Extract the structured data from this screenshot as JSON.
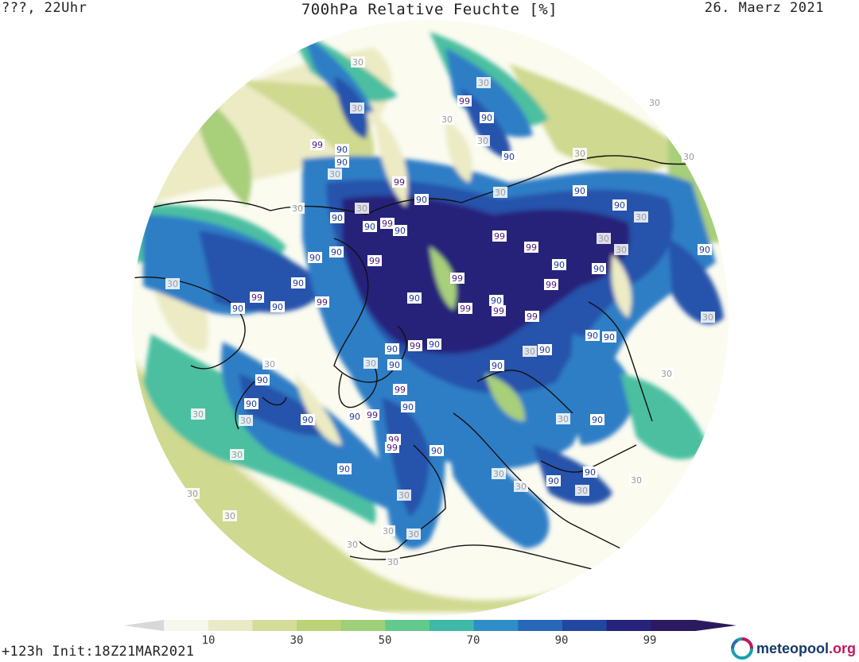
{
  "header": {
    "left": "???, 22Uhr",
    "title": "700hPa Relative Feuchte [%]",
    "date": "26. Maerz 2021"
  },
  "footer": {
    "init": "+123h  Init:18Z21MAR2021"
  },
  "brand": {
    "name": "meteopool",
    "tld": ".org"
  },
  "legend": {
    "colors": [
      "#f7f7ee",
      "#eaeac8",
      "#d4dc9a",
      "#bcd276",
      "#9fcf78",
      "#63c98c",
      "#3fb8a8",
      "#2e8ec8",
      "#2769b8",
      "#2247a0",
      "#25237a",
      "#2b1a60"
    ],
    "tick_labels": [
      "10",
      "30",
      "50",
      "70",
      "90",
      "99"
    ]
  },
  "contour_labels": {
    "label_90": "90",
    "label_99": "99",
    "label_30": "30"
  },
  "colors": {
    "dry": "#fbfbf0",
    "pale": "#ecebc4",
    "olive": "#cfd98f",
    "green": "#a8cf7a",
    "teal": "#4cbfa0",
    "blue": "#2f7ec6",
    "royal": "#2652ab",
    "navy": "#25237a",
    "coast": "#111111"
  }
}
